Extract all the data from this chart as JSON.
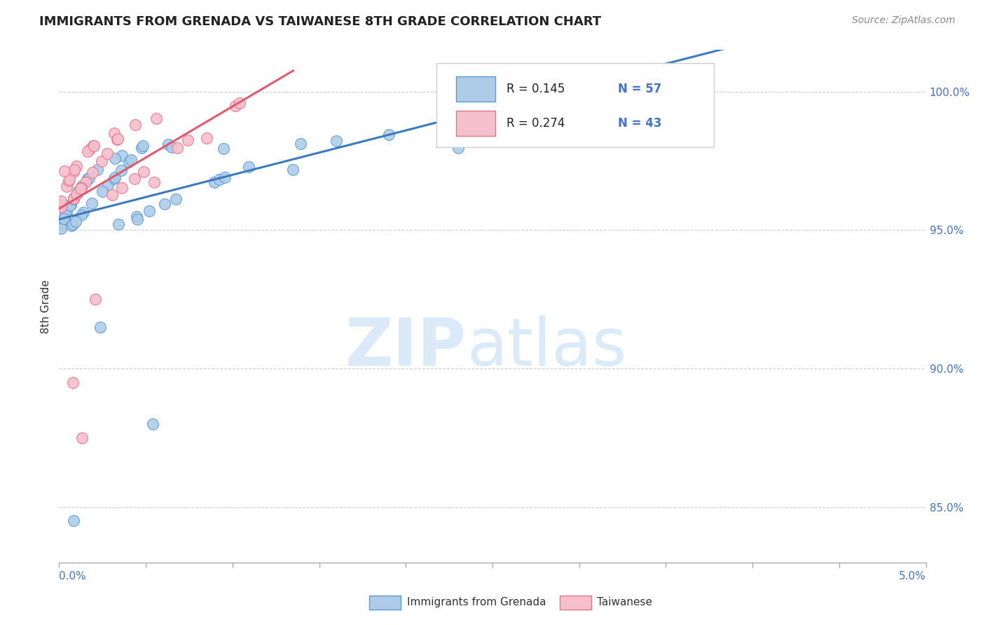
{
  "title": "IMMIGRANTS FROM GRENADA VS TAIWANESE 8TH GRADE CORRELATION CHART",
  "source_text": "Source: ZipAtlas.com",
  "ylabel": "8th Grade",
  "xmin": 0.0,
  "xmax": 5.0,
  "ymin": 83.0,
  "ymax": 101.5,
  "yticks": [
    85.0,
    90.0,
    95.0,
    100.0
  ],
  "ytick_labels": [
    "85.0%",
    "90.0%",
    "95.0%",
    "100.0%"
  ],
  "legend_r1": "R = 0.145",
  "legend_n1": "N = 57",
  "legend_r2": "R = 0.274",
  "legend_n2": "N = 43",
  "blue_fill": "#aecce8",
  "pink_fill": "#f5bfcc",
  "blue_edge": "#5b9bd5",
  "pink_edge": "#e8748a",
  "line_blue": "#3a7abf",
  "line_pink": "#e05a6e",
  "label_color": "#4472c4",
  "text_dark": "#222222",
  "text_gray": "#888888",
  "watermark_color": "#daeaf8"
}
